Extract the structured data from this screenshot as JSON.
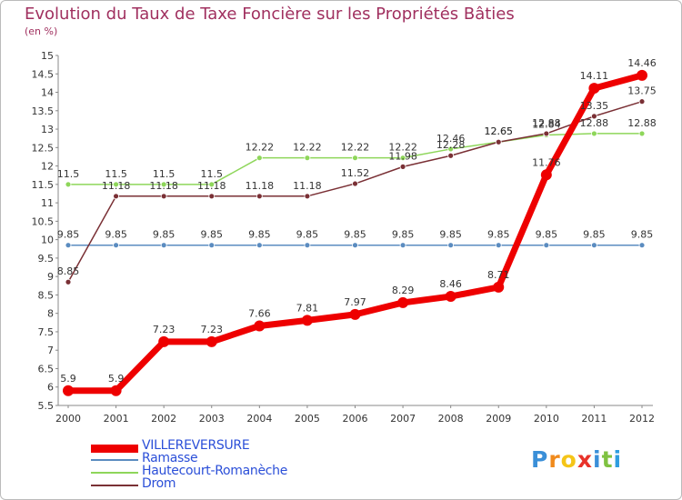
{
  "header": {
    "title": "Evolution du Taux de Taxe Foncière sur les Propriétés Bâties",
    "unit": "(en %)"
  },
  "chart_data": {
    "type": "line",
    "title": "Evolution du Taux de Taxe Foncière sur les Propriétés Bâties",
    "ylabel": "(en %)",
    "xlabel": "",
    "ylim": [
      5.5,
      15
    ],
    "ytick_step": 0.5,
    "grid": false,
    "legend_position": "bottom-left",
    "x": [
      "2000",
      "2001",
      "2002",
      "2003",
      "2004",
      "2005",
      "2006",
      "2007",
      "2008",
      "2009",
      "2010",
      "2011",
      "2012"
    ],
    "series": [
      {
        "name": "VILLEREVERSURE",
        "color": "#ee0000",
        "emphasis": true,
        "values": [
          5.9,
          5.9,
          7.23,
          7.23,
          7.66,
          7.81,
          7.97,
          8.29,
          8.46,
          8.71,
          11.76,
          14.11,
          14.46
        ],
        "labels": [
          "5.9",
          "5.9",
          "7.23",
          "7.23",
          "7.66",
          "7.81",
          "7.97",
          "8.29",
          "8.46",
          "8.71",
          "11.76",
          "14.11",
          "14.46"
        ]
      },
      {
        "name": "Ramasse",
        "color": "#5b8cc0",
        "values": [
          9.85,
          9.85,
          9.85,
          9.85,
          9.85,
          9.85,
          9.85,
          9.85,
          9.85,
          9.85,
          9.85,
          9.85,
          9.85
        ],
        "labels": [
          "9.85",
          "9.85",
          "9.85",
          "9.85",
          "9.85",
          "9.85",
          "9.85",
          "9.85",
          "9.85",
          "9.85",
          "9.85",
          "9.85",
          "9.85"
        ]
      },
      {
        "name": "Hautecourt-Romanèche",
        "color": "#8ed65a",
        "values": [
          11.5,
          11.5,
          11.5,
          11.5,
          12.22,
          12.22,
          12.22,
          12.22,
          12.46,
          12.65,
          12.84,
          12.88,
          12.88
        ],
        "labels": [
          "11.5",
          "11.5",
          "11.5",
          "11.5",
          "12.22",
          "12.22",
          "12.22",
          "12.22",
          "12.46",
          "12.65",
          "12.84",
          "12.88",
          "12.88"
        ]
      },
      {
        "name": "Drom",
        "color": "#7a3035",
        "values": [
          8.85,
          11.18,
          11.18,
          11.18,
          11.18,
          11.18,
          11.52,
          11.98,
          12.28,
          12.65,
          12.88,
          13.35,
          13.75
        ],
        "labels": [
          "8.85",
          "11.18",
          "11.18",
          "11.18",
          "11.18",
          "11.18",
          "11.52",
          "11.98",
          "12.28",
          "12.65",
          "12.88",
          "13.35",
          "13.75"
        ]
      }
    ]
  },
  "legend": {
    "items": [
      "VILLEREVERSURE",
      "Ramasse",
      "Hautecourt-Romanèche",
      "Drom"
    ]
  },
  "logo": {
    "letters": [
      "P",
      "r",
      "o",
      "x",
      "i",
      "t",
      "i"
    ],
    "colors": [
      "#3a8fd8",
      "#f08a1c",
      "#f5c518",
      "#e8322a",
      "#3a8fd8",
      "#7fc241",
      "#2e9de0"
    ]
  }
}
